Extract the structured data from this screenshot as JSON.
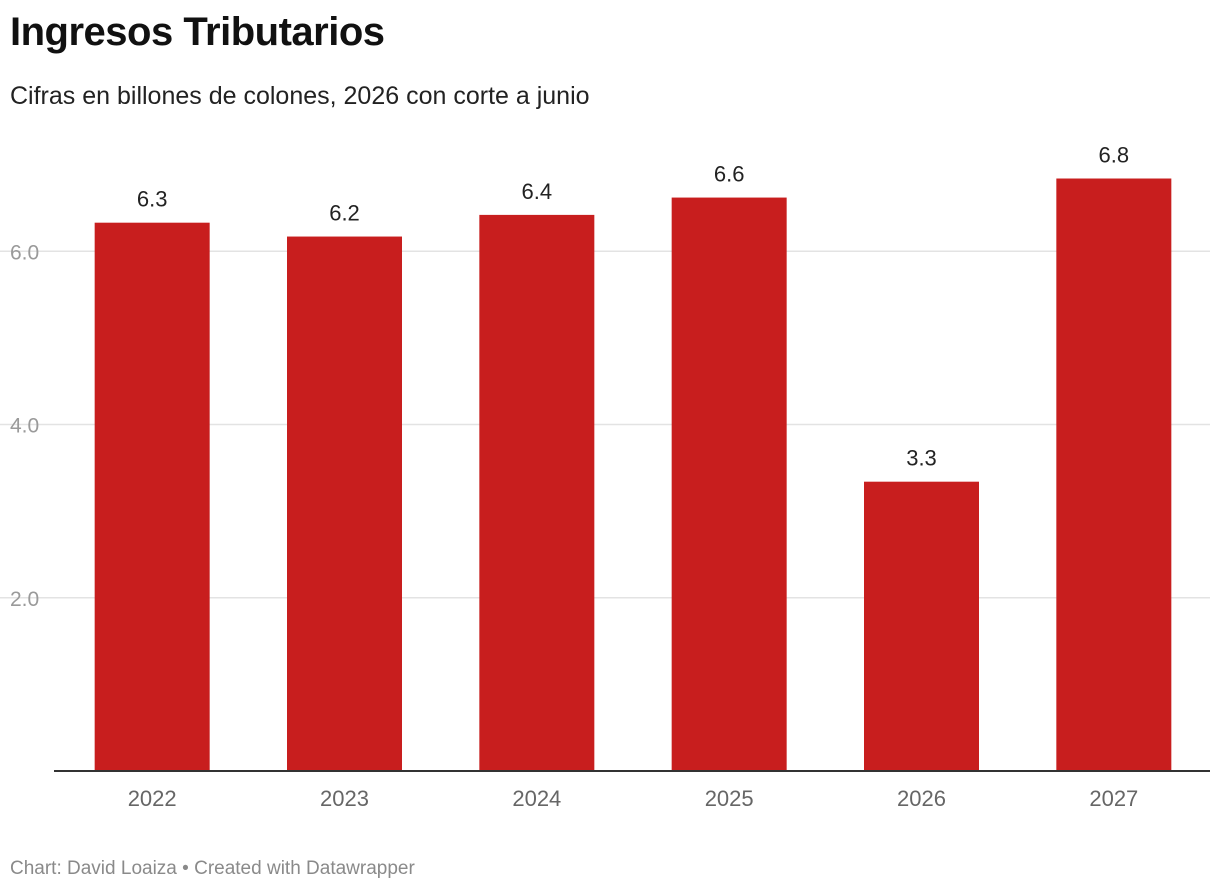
{
  "header": {
    "title": "Ingresos Tributarios",
    "subtitle": "Cifras en billones de colones, 2026 con corte a junio"
  },
  "footer": {
    "credit": "Chart: David Loaiza",
    "separator": "•",
    "tool": "Created with Datawrapper"
  },
  "colors": {
    "bar": "#c81e1e",
    "grid": "#e3e3e3",
    "baseline": "#333333"
  },
  "chart_data": {
    "type": "bar",
    "title": "Ingresos Tributarios",
    "subtitle": "Cifras en billones de colones, 2026 con corte a junio",
    "categories": [
      "2022",
      "2023",
      "2024",
      "2025",
      "2026",
      "2027"
    ],
    "values": [
      6.33,
      6.17,
      6.42,
      6.62,
      3.34,
      6.84
    ],
    "value_labels": [
      "6.3",
      "6.2",
      "6.4",
      "6.6",
      "3.3",
      "6.8"
    ],
    "ylim": [
      0,
      7.4
    ],
    "yticks": [
      2.0,
      4.0,
      6.0
    ],
    "ytick_labels": [
      "2.0",
      "4.0",
      "6.0"
    ],
    "grid": true,
    "legend": "none"
  }
}
